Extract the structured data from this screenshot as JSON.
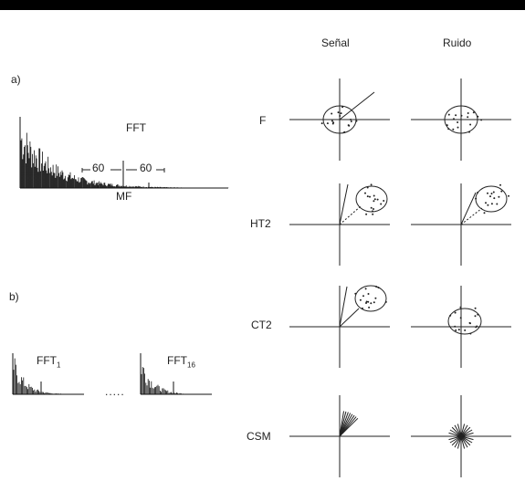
{
  "header": {
    "signal_label": "Señal",
    "noise_label": "Ruido"
  },
  "panel_a": {
    "label": "a)",
    "title": "FFT",
    "left_offset": "60",
    "right_offset": "60",
    "center_label": "MF"
  },
  "panel_b": {
    "label": "b)",
    "fft_first": "FFT",
    "fft_first_sub": "1",
    "fft_last": "FFT",
    "fft_last_sub": "16",
    "ellipsis": "....."
  },
  "rows": [
    {
      "id": "f",
      "label": "F"
    },
    {
      "id": "ht2",
      "label": "HT2"
    },
    {
      "id": "ct2",
      "label": "CT2"
    },
    {
      "id": "csm",
      "label": "CSM"
    }
  ]
}
